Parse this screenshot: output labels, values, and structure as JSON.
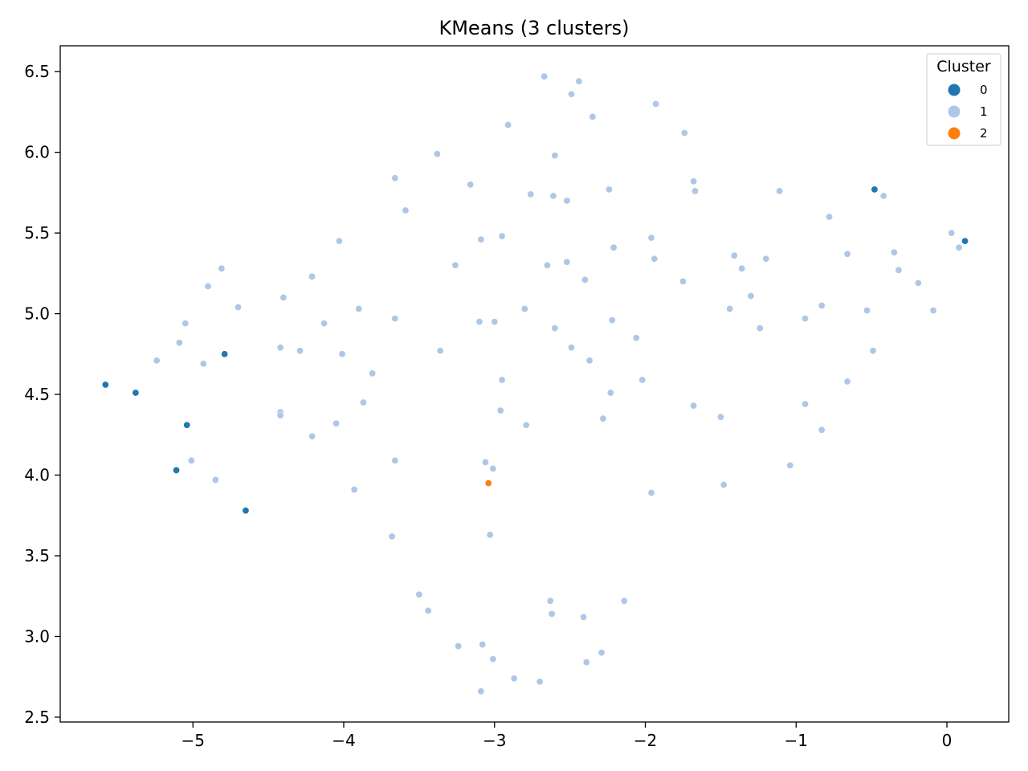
{
  "chart_data": {
    "type": "scatter",
    "title": "KMeans (3 clusters)",
    "xlabel": "",
    "ylabel": "",
    "xlim": [
      -5.88,
      0.41
    ],
    "ylim": [
      2.47,
      6.66
    ],
    "x_ticks": [
      -5,
      -4,
      -3,
      -2,
      -1,
      0
    ],
    "y_ticks": [
      2.5,
      3.0,
      3.5,
      4.0,
      4.5,
      5.0,
      5.5,
      6.0,
      6.5
    ],
    "x_tick_labels": [
      "−5",
      "−4",
      "−3",
      "−2",
      "−1",
      "0"
    ],
    "y_tick_labels": [
      "2.5",
      "3.0",
      "3.5",
      "4.0",
      "4.5",
      "5.0",
      "5.5",
      "6.0",
      "6.5"
    ],
    "grid": false,
    "legend": {
      "title": "Cluster",
      "placement": "top-right"
    },
    "series": [
      {
        "name": "0",
        "color": "#1f77b4",
        "points": [
          [
            -5.58,
            4.56
          ],
          [
            -5.38,
            4.51
          ],
          [
            -5.04,
            4.31
          ],
          [
            -5.11,
            4.03
          ],
          [
            -4.79,
            4.75
          ],
          [
            -4.65,
            3.78
          ],
          [
            -0.48,
            5.77
          ],
          [
            0.12,
            5.45
          ]
        ]
      },
      {
        "name": "1",
        "color": "#aec7e8",
        "points": [
          [
            -5.24,
            4.71
          ],
          [
            -5.09,
            4.82
          ],
          [
            -5.05,
            4.94
          ],
          [
            -4.93,
            4.69
          ],
          [
            -4.9,
            5.17
          ],
          [
            -4.81,
            5.28
          ],
          [
            -4.7,
            5.04
          ],
          [
            -5.01,
            4.09
          ],
          [
            -4.85,
            3.97
          ],
          [
            -4.42,
            4.79
          ],
          [
            -4.4,
            5.1
          ],
          [
            -4.29,
            4.77
          ],
          [
            -4.21,
            5.23
          ],
          [
            -4.13,
            4.94
          ],
          [
            -4.01,
            4.75
          ],
          [
            -4.03,
            5.45
          ],
          [
            -3.9,
            5.03
          ],
          [
            -3.81,
            4.63
          ],
          [
            -4.42,
            4.39
          ],
          [
            -4.42,
            4.37
          ],
          [
            -4.21,
            4.24
          ],
          [
            -4.05,
            4.32
          ],
          [
            -3.87,
            4.45
          ],
          [
            -3.93,
            3.91
          ],
          [
            -3.66,
            5.84
          ],
          [
            -3.59,
            5.64
          ],
          [
            -3.66,
            4.97
          ],
          [
            -3.66,
            4.09
          ],
          [
            -3.68,
            3.62
          ],
          [
            -3.38,
            5.99
          ],
          [
            -3.36,
            4.77
          ],
          [
            -3.26,
            5.3
          ],
          [
            -3.16,
            5.8
          ],
          [
            -3.09,
            5.46
          ],
          [
            -3.1,
            4.95
          ],
          [
            -3.0,
            4.95
          ],
          [
            -2.95,
            5.48
          ],
          [
            -2.91,
            6.17
          ],
          [
            -2.8,
            5.03
          ],
          [
            -2.95,
            4.59
          ],
          [
            -2.96,
            4.4
          ],
          [
            -2.79,
            4.31
          ],
          [
            -3.06,
            4.08
          ],
          [
            -3.01,
            4.04
          ],
          [
            -3.03,
            3.63
          ],
          [
            -2.76,
            5.74
          ],
          [
            -2.67,
            6.47
          ],
          [
            -2.6,
            5.98
          ],
          [
            -2.61,
            5.73
          ],
          [
            -2.65,
            5.3
          ],
          [
            -2.6,
            4.91
          ],
          [
            -2.52,
            5.7
          ],
          [
            -2.52,
            5.32
          ],
          [
            -2.49,
            6.36
          ],
          [
            -2.49,
            4.79
          ],
          [
            -2.44,
            6.44
          ],
          [
            -2.4,
            5.21
          ],
          [
            -2.37,
            4.71
          ],
          [
            -2.35,
            6.22
          ],
          [
            -2.24,
            5.77
          ],
          [
            -2.21,
            5.41
          ],
          [
            -2.22,
            4.96
          ],
          [
            -2.23,
            4.51
          ],
          [
            -2.28,
            4.35
          ],
          [
            -2.06,
            4.85
          ],
          [
            -2.02,
            4.59
          ],
          [
            -1.96,
            5.47
          ],
          [
            -1.94,
            5.34
          ],
          [
            -1.93,
            6.3
          ],
          [
            -1.96,
            3.89
          ],
          [
            -1.74,
            6.12
          ],
          [
            -1.75,
            5.2
          ],
          [
            -1.68,
            5.82
          ],
          [
            -1.67,
            5.76
          ],
          [
            -1.68,
            4.43
          ],
          [
            -1.5,
            4.36
          ],
          [
            -1.48,
            3.94
          ],
          [
            -1.41,
            5.36
          ],
          [
            -1.36,
            5.28
          ],
          [
            -1.44,
            5.03
          ],
          [
            -1.3,
            5.11
          ],
          [
            -1.2,
            5.34
          ],
          [
            -1.24,
            4.91
          ],
          [
            -1.11,
            5.76
          ],
          [
            -1.04,
            4.06
          ],
          [
            -0.94,
            4.97
          ],
          [
            -0.94,
            4.44
          ],
          [
            -0.83,
            5.05
          ],
          [
            -0.83,
            4.28
          ],
          [
            -0.78,
            5.6
          ],
          [
            -0.66,
            5.37
          ],
          [
            -0.66,
            4.58
          ],
          [
            -0.53,
            5.02
          ],
          [
            -0.49,
            4.77
          ],
          [
            -0.42,
            5.73
          ],
          [
            -0.35,
            5.38
          ],
          [
            -0.32,
            5.27
          ],
          [
            -0.19,
            5.19
          ],
          [
            -0.09,
            5.02
          ],
          [
            0.03,
            5.5
          ],
          [
            0.08,
            5.41
          ],
          [
            -3.5,
            3.26
          ],
          [
            -3.44,
            3.16
          ],
          [
            -3.24,
            2.94
          ],
          [
            -3.08,
            2.95
          ],
          [
            -3.01,
            2.86
          ],
          [
            -3.09,
            2.66
          ],
          [
            -2.87,
            2.74
          ],
          [
            -2.7,
            2.72
          ],
          [
            -2.63,
            3.22
          ],
          [
            -2.62,
            3.14
          ],
          [
            -2.41,
            3.12
          ],
          [
            -2.39,
            2.84
          ],
          [
            -2.29,
            2.9
          ],
          [
            -2.14,
            3.22
          ]
        ]
      },
      {
        "name": "2",
        "color": "#ff7f0e",
        "points": [
          [
            -3.04,
            3.95
          ]
        ]
      }
    ]
  }
}
